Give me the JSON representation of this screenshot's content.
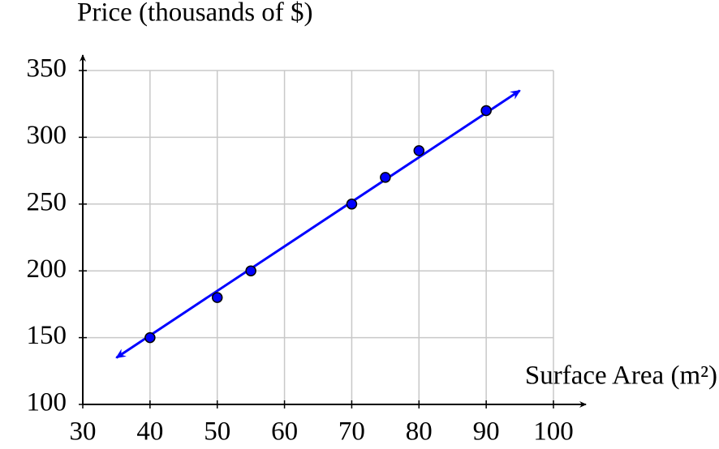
{
  "chart_data": {
    "type": "scatter",
    "x_label": "Surface Area (m²)",
    "y_label": "Price (thousands of $)",
    "series": [
      {
        "x": [
          40,
          50,
          55,
          70,
          75,
          80,
          90
        ],
        "values": [
          150,
          180,
          200,
          250,
          270,
          290,
          320
        ],
        "color": "#0000ff"
      }
    ],
    "trend_line": {
      "x": [
        35,
        95
      ],
      "values": [
        135,
        335
      ],
      "color": "#0000ff"
    },
    "xlim": [
      30,
      100
    ],
    "xticks": [
      30,
      40,
      50,
      60,
      70,
      80,
      90,
      100
    ],
    "ylim": [
      100,
      350
    ],
    "yticks": [
      100,
      150,
      200,
      250,
      300,
      350
    ],
    "grid": true
  }
}
